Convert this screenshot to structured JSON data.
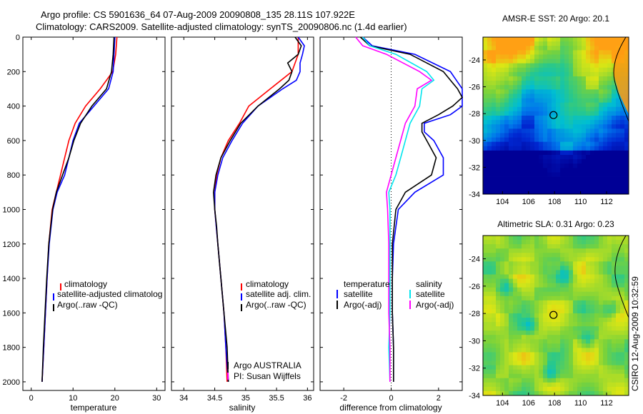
{
  "header": {
    "title_line1": "Argo profile: CS 5901636_64 07-Aug-2009 20090808_135 28.11S 107.922E",
    "title_line2": "Climatology: CARS2009. Satellite-adjusted climatology: synTS_20090806.nc (1.4d earlier)"
  },
  "colors": {
    "climatology": "#ff0000",
    "satellite": "#0000ff",
    "argo": "#000000",
    "argo_adj": "#ff00ff",
    "sat_salinity": "#00e5ee"
  },
  "chart_data": [
    {
      "type": "line",
      "name": "temperature-panel",
      "xlabel": "temperature",
      "ylabel": "",
      "xlim": [
        -2,
        32
      ],
      "ylim": [
        2050,
        0
      ],
      "xticks": [
        "0",
        "10",
        "20",
        "30"
      ],
      "yticks": [
        "0",
        "200",
        "400",
        "600",
        "800",
        "1000",
        "1200",
        "1400",
        "1600",
        "1800",
        "2000"
      ],
      "legend": [
        "climatology",
        "satellite-adjusted climatolog",
        "Argo(..raw -QC)"
      ],
      "series": [
        {
          "name": "climatology",
          "depth": [
            0,
            100,
            200,
            300,
            400,
            500,
            600,
            700,
            800,
            900,
            1000,
            1200,
            1400,
            1600,
            1800,
            2000
          ],
          "values": [
            20.5,
            20.2,
            19.5,
            16.5,
            13.0,
            10.5,
            9.0,
            8.0,
            7.0,
            6.0,
            5.0,
            4.2,
            3.8,
            3.4,
            3.0,
            2.6
          ]
        },
        {
          "name": "satellite",
          "depth": [
            0,
            100,
            200,
            300,
            400,
            500,
            600,
            700,
            800,
            900,
            1000,
            1200,
            1400,
            1600,
            1800,
            2000
          ],
          "values": [
            20.0,
            19.8,
            19.6,
            18.5,
            15.0,
            11.5,
            10.0,
            9.0,
            8.0,
            6.2,
            5.2,
            4.3,
            3.8,
            3.4,
            3.0,
            2.6
          ]
        },
        {
          "name": "argo",
          "depth": [
            0,
            100,
            200,
            300,
            400,
            500,
            600,
            700,
            800,
            900,
            1000,
            1200,
            1400,
            1600,
            1800,
            2000
          ],
          "values": [
            19.8,
            19.6,
            19.2,
            18.0,
            14.5,
            11.8,
            10.2,
            9.0,
            7.5,
            6.0,
            5.1,
            4.2,
            3.7,
            3.3,
            2.9,
            2.6
          ]
        }
      ]
    },
    {
      "type": "line",
      "name": "salinity-panel",
      "xlabel": "salinity",
      "xlim": [
        33.8,
        36.1
      ],
      "ylim": [
        2050,
        0
      ],
      "xticks": [
        "34",
        "34.5",
        "35",
        "35.5",
        "36"
      ],
      "legend": [
        "climatology",
        "satellite adj. clim.",
        "Argo(..raw -QC)"
      ],
      "annotation": [
        "Argo AUSTRALIA",
        "PI: Susan Wijffels"
      ],
      "series": [
        {
          "name": "climatology",
          "depth": [
            0,
            100,
            200,
            300,
            400,
            500,
            600,
            700,
            800,
            900,
            1000,
            1200,
            1400,
            1600,
            1800,
            2000
          ],
          "values": [
            35.85,
            35.85,
            35.75,
            35.4,
            35.05,
            34.9,
            34.72,
            34.6,
            34.53,
            34.5,
            34.5,
            34.55,
            34.6,
            34.65,
            34.68,
            34.7
          ]
        },
        {
          "name": "satellite",
          "depth": [
            0,
            50,
            100,
            150,
            200,
            250,
            300,
            400,
            500,
            600,
            700,
            800,
            900,
            1000,
            1200,
            1400,
            1600,
            1800,
            2000
          ],
          "values": [
            35.85,
            35.95,
            35.92,
            35.88,
            35.88,
            35.82,
            35.6,
            35.2,
            34.95,
            34.78,
            34.63,
            34.55,
            34.5,
            34.5,
            34.55,
            34.6,
            34.65,
            34.68,
            34.72
          ]
        },
        {
          "name": "argo",
          "depth": [
            0,
            50,
            100,
            150,
            200,
            250,
            300,
            400,
            500,
            600,
            700,
            800,
            900,
            1000,
            1100,
            1200,
            1400,
            1600,
            1800,
            2000
          ],
          "values": [
            35.8,
            35.9,
            35.85,
            35.68,
            35.75,
            35.7,
            35.55,
            35.2,
            34.92,
            34.75,
            34.6,
            34.52,
            34.48,
            34.5,
            34.53,
            34.55,
            34.6,
            34.65,
            34.7,
            34.72
          ]
        }
      ]
    },
    {
      "type": "line",
      "name": "difference-panel",
      "xlabel": "difference from climatology",
      "xlim": [
        -3,
        3
      ],
      "ylim": [
        2050,
        0
      ],
      "xticks": [
        "-2",
        "0",
        "2"
      ],
      "legend_temperature": [
        "temperature",
        "satellite",
        "Argo(-adj)"
      ],
      "legend_salinity": [
        "salinity",
        "satellite",
        "Argo(-adj)"
      ],
      "series": [
        {
          "name": "temperature satellite",
          "depth": [
            0,
            50,
            100,
            200,
            300,
            400,
            450,
            500,
            550,
            600,
            700,
            800,
            900,
            1000,
            1200,
            1400,
            1600,
            1800,
            2000
          ],
          "values": [
            -1.2,
            -0.8,
            1.0,
            2.5,
            3.0,
            3.0,
            2.5,
            1.4,
            1.4,
            1.8,
            2.2,
            2.2,
            1.0,
            0.3,
            0.1,
            0.05,
            0.05,
            0.1,
            0.1
          ]
        },
        {
          "name": "temperature argo",
          "depth": [
            0,
            50,
            100,
            200,
            300,
            350,
            400,
            450,
            500,
            550,
            600,
            700,
            800,
            900,
            1000,
            1200,
            1400,
            1600,
            1800,
            2000
          ],
          "values": [
            -1.3,
            -0.9,
            0.8,
            2.2,
            2.8,
            3.0,
            2.6,
            2.0,
            1.3,
            1.3,
            1.5,
            1.9,
            1.7,
            0.6,
            0.2,
            0.05,
            0.05,
            0.05,
            0.1,
            0.1
          ]
        },
        {
          "name": "salinity satellite",
          "depth": [
            0,
            50,
            100,
            200,
            250,
            300,
            400,
            500,
            700,
            800,
            900,
            1000,
            1200,
            1400,
            1600,
            1800,
            2000
          ],
          "values": [
            -1.2,
            -0.9,
            0.2,
            1.5,
            1.8,
            1.3,
            1.2,
            0.8,
            0.4,
            0.2,
            -0.1,
            -0.05,
            -0.05,
            -0.05,
            -0.05,
            -0.1,
            -0.05
          ]
        },
        {
          "name": "salinity argo",
          "depth": [
            0,
            50,
            100,
            200,
            250,
            300,
            400,
            500,
            700,
            800,
            900,
            1000,
            1200,
            1400,
            1600,
            1800,
            2000
          ],
          "values": [
            -1.5,
            -1.2,
            -0.2,
            1.2,
            1.7,
            1.1,
            1.0,
            0.6,
            0.2,
            0.0,
            -0.2,
            -0.15,
            -0.1,
            -0.1,
            -0.1,
            -0.05,
            -0.05
          ]
        }
      ]
    },
    {
      "type": "heatmap",
      "name": "sst-map",
      "title": "AMSR-E SST: 20 Argo: 20.1",
      "xticks": [
        "104",
        "106",
        "108",
        "110",
        "112"
      ],
      "yticks": [
        "-24",
        "-26",
        "-28",
        "-30",
        "-32",
        "-34"
      ],
      "xlim": [
        102.5,
        113.7
      ],
      "ylim": [
        -34,
        -22.3
      ],
      "marker": {
        "lon": 107.92,
        "lat": -28.11
      }
    },
    {
      "type": "heatmap",
      "name": "sla-map",
      "title": "Altimetric SLA: 0.31 Argo: 0.23",
      "xticks": [
        "104",
        "106",
        "108",
        "110",
        "112"
      ],
      "yticks": [
        "-24",
        "-26",
        "-28",
        "-30",
        "-32",
        "-34"
      ],
      "xlim": [
        102.5,
        113.7
      ],
      "ylim": [
        -34,
        -22.3
      ],
      "marker": {
        "lon": 107.92,
        "lat": -28.11
      }
    }
  ],
  "footer": {
    "stamp": "CSIRO 12-Aug-2009 10:32:59"
  }
}
